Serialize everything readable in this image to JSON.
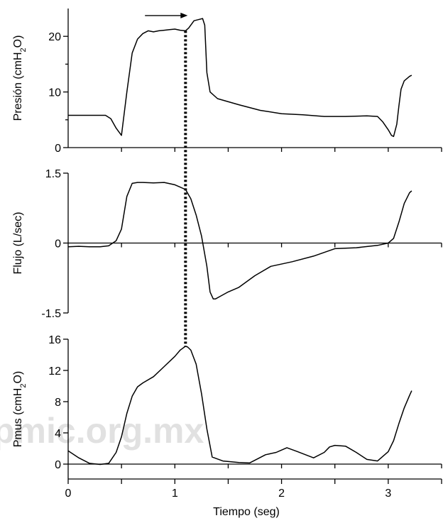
{
  "chart_data": {
    "type": "line",
    "x_axis": {
      "label": "Tiempo (seg)",
      "range": [
        0,
        3.5
      ],
      "ticks": [
        0,
        1,
        2,
        3
      ],
      "tick_labels": [
        "0",
        "1",
        "2",
        "3"
      ]
    },
    "panels": [
      {
        "id": "presion",
        "ylabel": {
          "main": "Presión (cmH",
          "sub": "2",
          "end": "O)"
        },
        "ylim": [
          0,
          25
        ],
        "ticks": [
          0,
          10,
          20
        ],
        "tick_labels": [
          "0",
          "10",
          "20"
        ],
        "x": [
          0,
          0.35,
          0.4,
          0.45,
          0.5,
          0.55,
          0.6,
          0.65,
          0.7,
          0.75,
          0.8,
          0.85,
          0.9,
          0.95,
          1.0,
          1.05,
          1.1,
          1.13,
          1.18,
          1.22,
          1.26,
          1.28,
          1.3,
          1.33,
          1.4,
          1.6,
          1.8,
          2.0,
          2.2,
          2.4,
          2.6,
          2.8,
          2.9,
          2.95,
          3.0,
          3.03,
          3.05,
          3.08,
          3.1,
          3.12,
          3.15,
          3.2,
          3.22
        ],
        "y": [
          5.8,
          5.8,
          5.2,
          3.5,
          2.2,
          10,
          17,
          19.5,
          20.5,
          21,
          20.8,
          21,
          21.1,
          21.2,
          21.3,
          21.1,
          21.0,
          21.5,
          22.8,
          23.0,
          23.2,
          22.0,
          13.5,
          10,
          8.8,
          7.7,
          6.7,
          6.1,
          5.9,
          5.6,
          5.6,
          5.7,
          5.6,
          4.6,
          3.2,
          2.2,
          2.0,
          4.2,
          7.5,
          10.5,
          12.0,
          12.8,
          13.0
        ]
      },
      {
        "id": "flujo",
        "ylabel": {
          "main": "Flujo (L/sec)",
          "sub": "",
          "end": ""
        },
        "ylim": [
          -1.5,
          1.5
        ],
        "ticks": [
          -1.5,
          0,
          1.5
        ],
        "tick_labels": [
          "-1.5",
          "0",
          "1.5"
        ],
        "x": [
          0,
          0.1,
          0.2,
          0.3,
          0.38,
          0.45,
          0.5,
          0.55,
          0.6,
          0.65,
          0.7,
          0.8,
          0.9,
          1.0,
          1.1,
          1.15,
          1.2,
          1.25,
          1.3,
          1.33,
          1.36,
          1.38,
          1.42,
          1.5,
          1.6,
          1.75,
          1.9,
          2.1,
          2.3,
          2.5,
          2.7,
          2.9,
          3.0,
          3.05,
          3.1,
          3.15,
          3.2,
          3.22
        ],
        "y": [
          -0.08,
          -0.07,
          -0.08,
          -0.08,
          -0.06,
          0.05,
          0.3,
          1.0,
          1.28,
          1.3,
          1.3,
          1.29,
          1.3,
          1.25,
          1.15,
          0.95,
          0.6,
          0.15,
          -0.5,
          -1.05,
          -1.2,
          -1.2,
          -1.15,
          -1.05,
          -0.95,
          -0.7,
          -0.5,
          -0.4,
          -0.28,
          -0.12,
          -0.1,
          -0.05,
          0.0,
          0.1,
          0.45,
          0.85,
          1.08,
          1.12
        ]
      },
      {
        "id": "pmus",
        "ylabel": {
          "main": "Pmus (cmH",
          "sub": "2",
          "end": "O)"
        },
        "ylim": [
          -1.5,
          16
        ],
        "ticks": [
          0,
          4,
          8,
          12,
          16
        ],
        "tick_labels": [
          "0",
          "4",
          "8",
          "12",
          "16"
        ],
        "x": [
          0,
          0.1,
          0.2,
          0.3,
          0.38,
          0.45,
          0.5,
          0.55,
          0.6,
          0.65,
          0.7,
          0.8,
          0.9,
          1.0,
          1.05,
          1.1,
          1.12,
          1.15,
          1.2,
          1.25,
          1.3,
          1.35,
          1.45,
          1.6,
          1.7,
          1.85,
          1.95,
          2.05,
          2.15,
          2.3,
          2.4,
          2.45,
          2.5,
          2.6,
          2.7,
          2.8,
          2.9,
          3.0,
          3.05,
          3.1,
          3.15,
          3.2,
          3.22
        ],
        "y": [
          1.7,
          0.8,
          0.1,
          -0.05,
          0.1,
          1.5,
          3.5,
          6.5,
          8.7,
          9.9,
          10.4,
          11.2,
          12.5,
          13.8,
          14.6,
          15.1,
          15.0,
          14.6,
          12.8,
          9.0,
          4.5,
          0.9,
          0.4,
          0.2,
          0.15,
          1.2,
          1.5,
          2.1,
          1.6,
          0.8,
          1.5,
          2.2,
          2.4,
          2.3,
          1.5,
          0.6,
          0.4,
          1.6,
          3.0,
          5.2,
          7.2,
          8.8,
          9.4
        ]
      }
    ],
    "annotations": {
      "arrow": {
        "x_start": 0.72,
        "x_end": 1.12,
        "panel": "presion",
        "y": 24.5
      },
      "dotted_line": {
        "x": 1.1
      }
    },
    "watermark": "pmic.org.mx"
  }
}
